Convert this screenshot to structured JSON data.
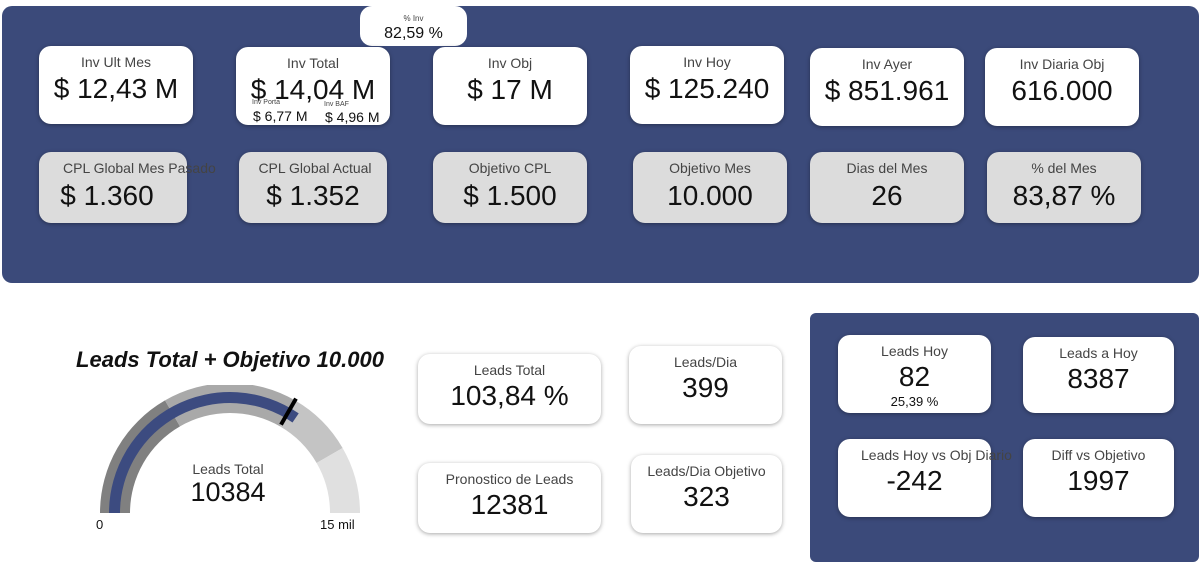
{
  "investment": {
    "pct_inv": {
      "label": "% Inv",
      "value": "82,59 %"
    },
    "inv_ult_mes": {
      "label": "Inv Ult Mes",
      "value": "$ 12,43 M"
    },
    "inv_total": {
      "label": "Inv Total",
      "value": "$ 14,04 M",
      "porta": {
        "label": "Inv Porta",
        "value": "$ 6,77 M"
      },
      "baf": {
        "label": "Inv BAF",
        "value": "$ 4,96 M"
      }
    },
    "inv_obj": {
      "label": "Inv Obj",
      "value": "$ 17 M"
    },
    "inv_hoy": {
      "label": "Inv Hoy",
      "value": "$ 125.240"
    },
    "inv_ayer": {
      "label": "Inv Ayer",
      "value": "$ 851.961"
    },
    "inv_diaria_obj": {
      "label": "Inv Diaria Obj",
      "value": "616.000"
    },
    "cpl_mes_pasado": {
      "label": "CPL Global Mes Pasado",
      "value": "$ 1.360"
    },
    "cpl_actual": {
      "label": "CPL Global Actual",
      "value": "$ 1.352"
    },
    "objetivo_cpl": {
      "label": "Objetivo CPL",
      "value": "$ 1.500"
    },
    "objetivo_mes": {
      "label": "Objetivo Mes",
      "value": "10.000"
    },
    "dias_mes": {
      "label": "Dias del Mes",
      "value": "26"
    },
    "pct_mes": {
      "label": "% del Mes",
      "value": "83,87 %"
    }
  },
  "gauge": {
    "title": "Leads Total + Objetivo 10.000",
    "label": "Leads Total",
    "value_text": "10384",
    "value": 10384,
    "target": 10000,
    "min": 0,
    "max": 15000,
    "min_label": "0",
    "max_label": "15 mil",
    "bands": [
      5000,
      10000,
      12500,
      15000
    ]
  },
  "leads": {
    "leads_total_pct": {
      "label": "Leads Total",
      "value": "103,84 %"
    },
    "leads_dia": {
      "label": "Leads/Dia",
      "value": "399"
    },
    "pronostico": {
      "label": "Pronostico de Leads",
      "value": "12381"
    },
    "leads_dia_obj": {
      "label": "Leads/Dia Objetivo",
      "value": "323"
    }
  },
  "daily": {
    "leads_hoy": {
      "label": "Leads Hoy",
      "value": "82",
      "sub": "25,39 %"
    },
    "leads_a_hoy": {
      "label": "Leads a Hoy",
      "value": "8387"
    },
    "hoy_vs_obj": {
      "label": "Leads Hoy vs Obj Diario",
      "value": "-242"
    },
    "diff_vs_obj": {
      "label": "Diff vs Objetivo",
      "value": "1997"
    }
  },
  "colors": {
    "panel": "#3b4a7a",
    "gauge_fill": "#3c4b80",
    "band_dark": "#808080",
    "band_mid": "#a9a9a9",
    "band_light": "#c4c4c4",
    "band_lighter": "#e0e0e0"
  }
}
